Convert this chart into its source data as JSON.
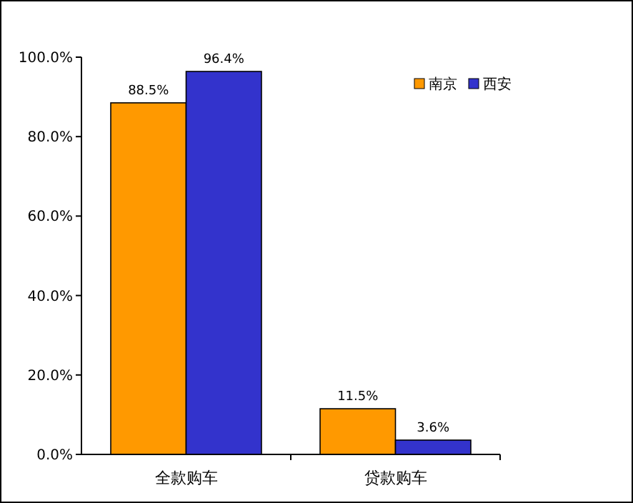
{
  "chart_data": {
    "type": "bar",
    "categories": [
      "全款购车",
      "贷款购车"
    ],
    "series": [
      {
        "name": "南京",
        "color": "#ff9900",
        "values": [
          88.5,
          11.5
        ],
        "value_labels": [
          "88.5%",
          "11.5%"
        ]
      },
      {
        "name": "西安",
        "color": "#3333cc",
        "values": [
          96.4,
          3.6
        ],
        "value_labels": [
          "96.4%",
          "3.6%"
        ]
      }
    ],
    "ylim": [
      0,
      100
    ],
    "yticks": [
      {
        "value": 0,
        "label": "0.0%"
      },
      {
        "value": 20,
        "label": "20.0%"
      },
      {
        "value": 40,
        "label": "40.0%"
      },
      {
        "value": 60,
        "label": "60.0%"
      },
      {
        "value": 80,
        "label": "80.0%"
      },
      {
        "value": 100,
        "label": "100.0%"
      }
    ],
    "grid": false,
    "legend": "top right"
  }
}
